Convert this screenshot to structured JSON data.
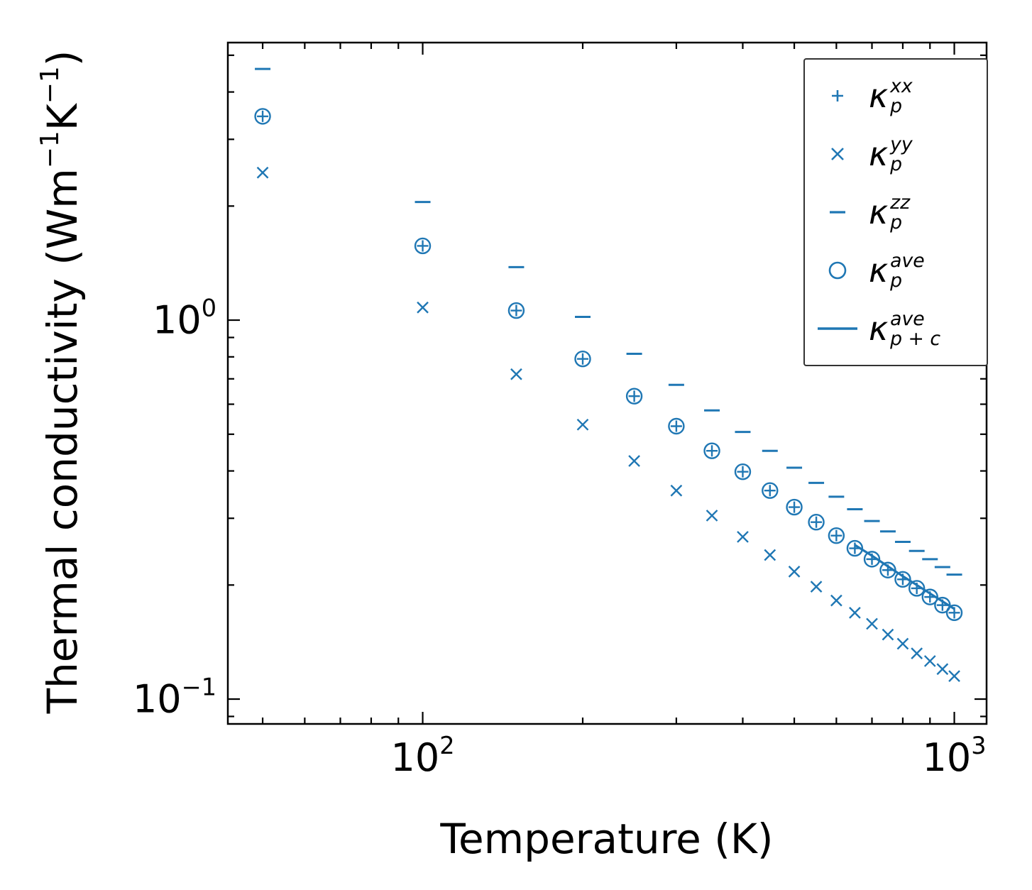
{
  "chart_data": {
    "type": "scatter",
    "title": "",
    "xlabel": "Temperature (K)",
    "ylabel_segments": [
      {
        "t": "Thermal conductivity (Wm"
      },
      {
        "sup": "−1"
      },
      {
        "t": "K"
      },
      {
        "sup": "−1"
      },
      {
        "t": ")"
      }
    ],
    "x_scale": "log",
    "y_scale": "log",
    "xlim": [
      43,
      1150
    ],
    "ylim": [
      0.086,
      5.4
    ],
    "grid": false,
    "legend_position": "upper right",
    "color": "#1f77b4",
    "x_major_ticks": [
      {
        "value": 100,
        "base": "10",
        "exp": "2"
      },
      {
        "value": 1000,
        "base": "10",
        "exp": "3"
      }
    ],
    "y_major_ticks": [
      {
        "value": 1,
        "base": "10",
        "exp": "0"
      },
      {
        "value": 0.1,
        "base": "10",
        "exp": "−1"
      }
    ],
    "x_minor_ticks": [
      50,
      60,
      70,
      80,
      90,
      200,
      300,
      400,
      500,
      600,
      700,
      800,
      900
    ],
    "y_minor_ticks": [
      0.09,
      0.2,
      0.3,
      0.4,
      0.5,
      0.6,
      0.7,
      0.8,
      0.9,
      2,
      3,
      4,
      5
    ],
    "temperatures": [
      50,
      100,
      150,
      200,
      250,
      300,
      350,
      400,
      450,
      500,
      550,
      600,
      650,
      700,
      750,
      800,
      850,
      900,
      950,
      1000
    ],
    "series": [
      {
        "name": "kappa-p-xx",
        "marker": "plus",
        "label": {
          "base": "κ",
          "sup": "xx",
          "sub": "p"
        },
        "values": [
          3.45,
          1.57,
          1.06,
          0.79,
          0.63,
          0.525,
          0.452,
          0.398,
          0.355,
          0.321,
          0.293,
          0.27,
          0.25,
          0.234,
          0.219,
          0.207,
          0.196,
          0.186,
          0.177,
          0.169
        ]
      },
      {
        "name": "kappa-p-yy",
        "marker": "x",
        "label": {
          "base": "κ",
          "sup": "yy",
          "sub": "p"
        },
        "values": [
          2.45,
          1.08,
          0.72,
          0.53,
          0.425,
          0.355,
          0.305,
          0.268,
          0.24,
          0.217,
          0.198,
          0.182,
          0.169,
          0.158,
          0.148,
          0.14,
          0.132,
          0.126,
          0.12,
          0.115
        ]
      },
      {
        "name": "kappa-p-zz",
        "marker": "hline",
        "label": {
          "base": "κ",
          "sup": "zz",
          "sub": "p"
        },
        "values": [
          4.6,
          2.05,
          1.38,
          1.02,
          0.815,
          0.675,
          0.578,
          0.507,
          0.452,
          0.408,
          0.372,
          0.342,
          0.317,
          0.295,
          0.277,
          0.26,
          0.246,
          0.234,
          0.223,
          0.213
        ]
      },
      {
        "name": "kappa-p-ave",
        "marker": "circle",
        "label": {
          "base": "κ",
          "sup": "ave",
          "sub": "p"
        },
        "values": [
          3.45,
          1.57,
          1.06,
          0.79,
          0.63,
          0.525,
          0.452,
          0.398,
          0.355,
          0.321,
          0.293,
          0.27,
          0.25,
          0.234,
          0.219,
          0.207,
          0.196,
          0.186,
          0.177,
          0.169
        ]
      },
      {
        "name": "kappa-p-plus-c-ave",
        "marker": "line",
        "label": {
          "base": "κ",
          "sup": "ave",
          "sub": "p + c"
        },
        "x": [
          650,
          700,
          750,
          800,
          850,
          900,
          950,
          1000
        ],
        "values": [
          0.255,
          0.239,
          0.224,
          0.211,
          0.2,
          0.19,
          0.181,
          0.173
        ]
      }
    ]
  }
}
